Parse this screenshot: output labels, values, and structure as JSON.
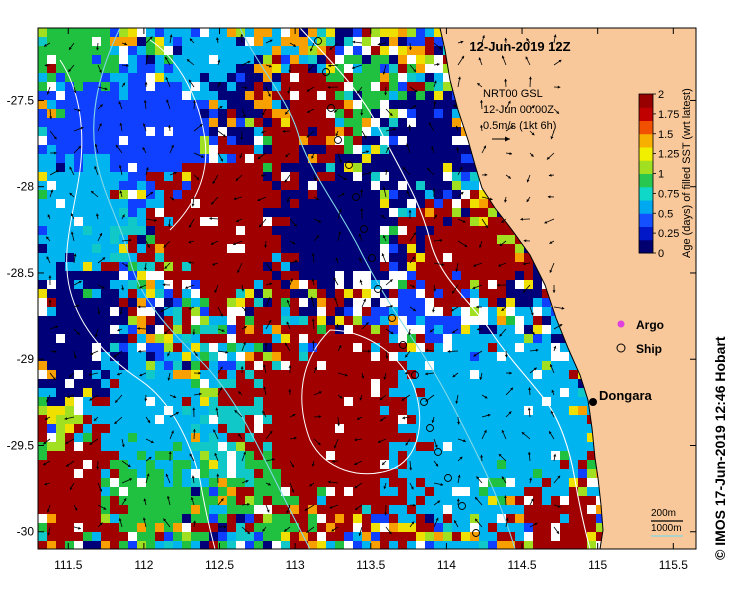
{
  "title": "12-Jun-2019 12Z",
  "current": {
    "product": "NRT00 GSL",
    "time": "12-Jun 00:00Z",
    "scale_label": "0.5m/s (1kt 6h)"
  },
  "colorbar": {
    "label": "Age (days) of filled SST (wrt latest)",
    "ticks": [
      "0",
      "0.25",
      "0.5",
      "0.75",
      "1",
      "1.25",
      "1.5",
      "1.75",
      "2"
    ],
    "colors": [
      "#000070",
      "#0018c8",
      "#1450ff",
      "#00a8f0",
      "#10d8c8",
      "#28c850",
      "#a0e020",
      "#f0f000",
      "#f8b000",
      "#f05000",
      "#c00000",
      "#980000"
    ]
  },
  "axes": {
    "x_ticks": [
      "111.5",
      "112",
      "112.5",
      "113",
      "113.5",
      "114",
      "114.5",
      "115",
      "115.5"
    ],
    "y_ticks": [
      "-27.5",
      "-28",
      "-28.5",
      "-29",
      "-29.5",
      "-30"
    ]
  },
  "legend": {
    "argo_label": "Argo",
    "ship_label": "Ship"
  },
  "place": {
    "name": "Dongara"
  },
  "isobaths": {
    "shallow_label": "200m",
    "deep_label": "1000m"
  },
  "credit": "© IMOS 17-Jun-2019 12:46 Hobart",
  "colors": {
    "land": "#f8c89a",
    "isobath_200": "#ffffff",
    "isobath_1000": "#80d8e8",
    "argo": "#e040e0"
  }
}
